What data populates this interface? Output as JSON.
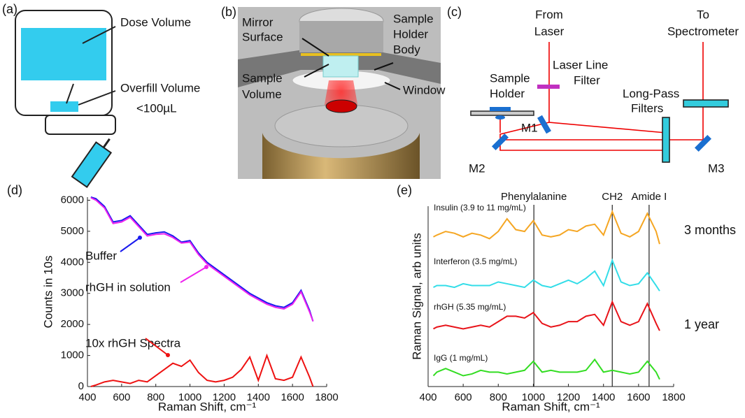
{
  "panel_a": {
    "label": "(a)",
    "dose": "Dose Volume",
    "overfill": "Overfill Volume",
    "limit": "<100µL"
  },
  "panel_b": {
    "label": "(b)",
    "mirror": [
      "Mirror",
      "Surface"
    ],
    "body": [
      "Sample",
      "Holder",
      "Body"
    ],
    "volume": [
      "Sample",
      "Volume"
    ],
    "window": "Window"
  },
  "panel_c": {
    "label": "(c)",
    "source": [
      "From",
      "Laser"
    ],
    "target": [
      "To",
      "Spectrometer"
    ],
    "line_filter": [
      "Laser Line",
      "Filter"
    ],
    "holder": [
      "Sample",
      "Holder"
    ],
    "long_pass": [
      "Long-Pass",
      "Filters"
    ],
    "mirrors": [
      "M1",
      "M2",
      "M3"
    ]
  },
  "chart_data": [
    {
      "type": "line",
      "panel_label": "(d)",
      "xlabel": "Raman Shift, cm⁻¹",
      "ylabel": "Counts in 10s",
      "x": [
        420,
        450,
        500,
        550,
        600,
        650,
        700,
        750,
        800,
        850,
        900,
        950,
        1000,
        1050,
        1100,
        1150,
        1200,
        1250,
        1300,
        1350,
        1400,
        1450,
        1500,
        1550,
        1600,
        1650,
        1700,
        1720
      ],
      "xlim": [
        400,
        1800
      ],
      "xticks": [
        400,
        600,
        800,
        1000,
        1200,
        1400,
        1600,
        1800
      ],
      "ylim": [
        0,
        6100
      ],
      "yticks": [
        0,
        1000,
        2000,
        3000,
        4000,
        5000,
        6000
      ],
      "series": [
        {
          "name": "Buffer",
          "color": "#1a1aee",
          "values": [
            6100,
            6050,
            5800,
            5300,
            5350,
            5500,
            5200,
            4900,
            4950,
            4980,
            4850,
            4650,
            4700,
            4300,
            4000,
            3800,
            3600,
            3400,
            3200,
            3000,
            2850,
            2700,
            2600,
            2550,
            2700,
            3100,
            2450,
            2100
          ]
        },
        {
          "name": "rhGH in solution",
          "color": "#ee22ee",
          "values": [
            6080,
            6000,
            5750,
            5250,
            5300,
            5450,
            5150,
            4850,
            4900,
            4920,
            4800,
            4620,
            4650,
            4250,
            3950,
            3750,
            3550,
            3350,
            3150,
            2950,
            2800,
            2650,
            2550,
            2500,
            2650,
            3050,
            2400,
            2100
          ]
        },
        {
          "name": "10x rhGH Spectra",
          "color": "#ee1111",
          "values": [
            0,
            50,
            150,
            200,
            150,
            100,
            200,
            150,
            350,
            550,
            750,
            650,
            850,
            450,
            200,
            150,
            200,
            300,
            550,
            950,
            200,
            1000,
            250,
            200,
            300,
            950,
            300,
            0
          ]
        }
      ]
    },
    {
      "type": "line",
      "panel_label": "(e)",
      "xlabel": "Raman Shift, cm⁻¹",
      "ylabel": "Raman Signal, arb units",
      "x": [
        430,
        450,
        500,
        550,
        600,
        650,
        700,
        750,
        800,
        850,
        900,
        950,
        1000,
        1050,
        1100,
        1150,
        1200,
        1250,
        1300,
        1350,
        1400,
        1450,
        1500,
        1550,
        1600,
        1650,
        1700,
        1720
      ],
      "xlim": [
        400,
        1800
      ],
      "xticks": [
        400,
        600,
        800,
        1000,
        1200,
        1400,
        1600,
        1800
      ],
      "ylim": [
        0,
        10
      ],
      "series": [
        {
          "name": "Insulin (3.9 to 11 mg/mL)",
          "color": "#f5a623",
          "values": [
            8.3,
            8.4,
            8.6,
            8.5,
            8.3,
            8.5,
            8.4,
            8.2,
            8.6,
            9.3,
            8.7,
            8.6,
            9.2,
            8.4,
            8.3,
            8.4,
            8.7,
            8.6,
            8.9,
            9.0,
            8.4,
            9.7,
            8.5,
            8.3,
            8.6,
            9.6,
            8.6,
            7.9
          ]
        },
        {
          "name": "Interferon (3.5 mg/mL)",
          "color": "#33dde8",
          "values": [
            5.5,
            5.6,
            5.6,
            5.5,
            5.7,
            5.6,
            5.6,
            5.6,
            5.8,
            5.7,
            5.6,
            5.5,
            5.9,
            5.6,
            5.5,
            5.7,
            5.9,
            5.7,
            6.0,
            6.4,
            5.6,
            7.0,
            5.8,
            5.6,
            5.7,
            6.3,
            5.6,
            5.3
          ]
        },
        {
          "name": "rhGH (5.35 mg/mL)",
          "color": "#e8141a",
          "values": [
            3.2,
            3.3,
            3.4,
            3.3,
            3.2,
            3.3,
            3.4,
            3.3,
            3.6,
            3.9,
            3.9,
            3.8,
            4.1,
            3.5,
            3.3,
            3.4,
            3.6,
            3.6,
            3.9,
            4.0,
            3.4,
            4.7,
            3.6,
            3.4,
            3.6,
            4.6,
            3.5,
            3.1
          ]
        },
        {
          "name": "IgG (1 mg/mL)",
          "color": "#33dd22",
          "values": [
            0.6,
            0.8,
            1.0,
            0.8,
            0.6,
            0.7,
            0.9,
            0.8,
            0.8,
            0.7,
            0.8,
            0.9,
            1.4,
            0.8,
            0.9,
            0.8,
            0.8,
            0.8,
            0.9,
            1.5,
            0.8,
            0.9,
            0.8,
            0.7,
            0.8,
            1.4,
            0.8,
            0.4
          ]
        }
      ],
      "markers": [
        {
          "label": "Phenylalanine",
          "x": 1003
        },
        {
          "label": "CH2",
          "x": 1450
        },
        {
          "label": "Amide I",
          "x": 1660
        }
      ],
      "annotations": [
        "3 months",
        "1 year"
      ]
    }
  ]
}
